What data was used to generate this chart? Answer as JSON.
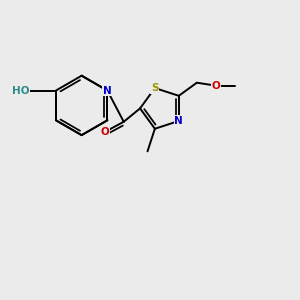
{
  "background_color": "#ebebeb",
  "figsize": [
    3.0,
    3.0
  ],
  "dpi": 100,
  "atoms": {
    "C": "#000000",
    "N": "#0000cc",
    "O": "#cc0000",
    "S": "#999900",
    "HO_color": "#2e8b8b"
  },
  "lw": 1.4,
  "fontsize": 7.5
}
